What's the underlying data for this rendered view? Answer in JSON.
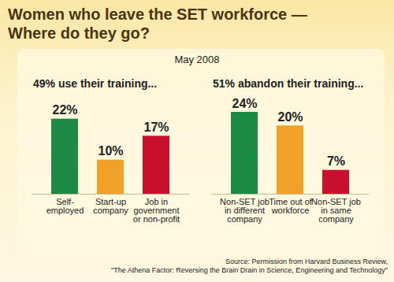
{
  "chart_data": {
    "type": "bar",
    "title": "Women who leave the SET workforce — Where do they go?",
    "subtitle": "May 2008",
    "caption": [
      "Source: Permission from Harvard Business Review,",
      "\"The Athena Factor: Reversing the Brain Drain in Science, Engineering and Technology\""
    ],
    "ylim": [
      0,
      24
    ],
    "data_labels": true,
    "tick_labels": "x",
    "panels": [
      {
        "title": "49% use their training...",
        "categories": [
          "Self-employed",
          "Start-up company",
          "Job in government or non-profit"
        ],
        "values": [
          22,
          10,
          17
        ],
        "value_labels": [
          "22%",
          "10%",
          "17%"
        ],
        "colors": [
          "#1b8a45",
          "#f0a127",
          "#c8102e"
        ]
      },
      {
        "title": "51% abandon their training...",
        "categories": [
          "Non-SET job in different company",
          "Time out of workforce",
          "Non-SET job in same company"
        ],
        "values": [
          24,
          20,
          7
        ],
        "value_labels": [
          "24%",
          "20%",
          "7%"
        ],
        "colors": [
          "#1b8a45",
          "#f0a127",
          "#c8102e"
        ]
      }
    ]
  }
}
